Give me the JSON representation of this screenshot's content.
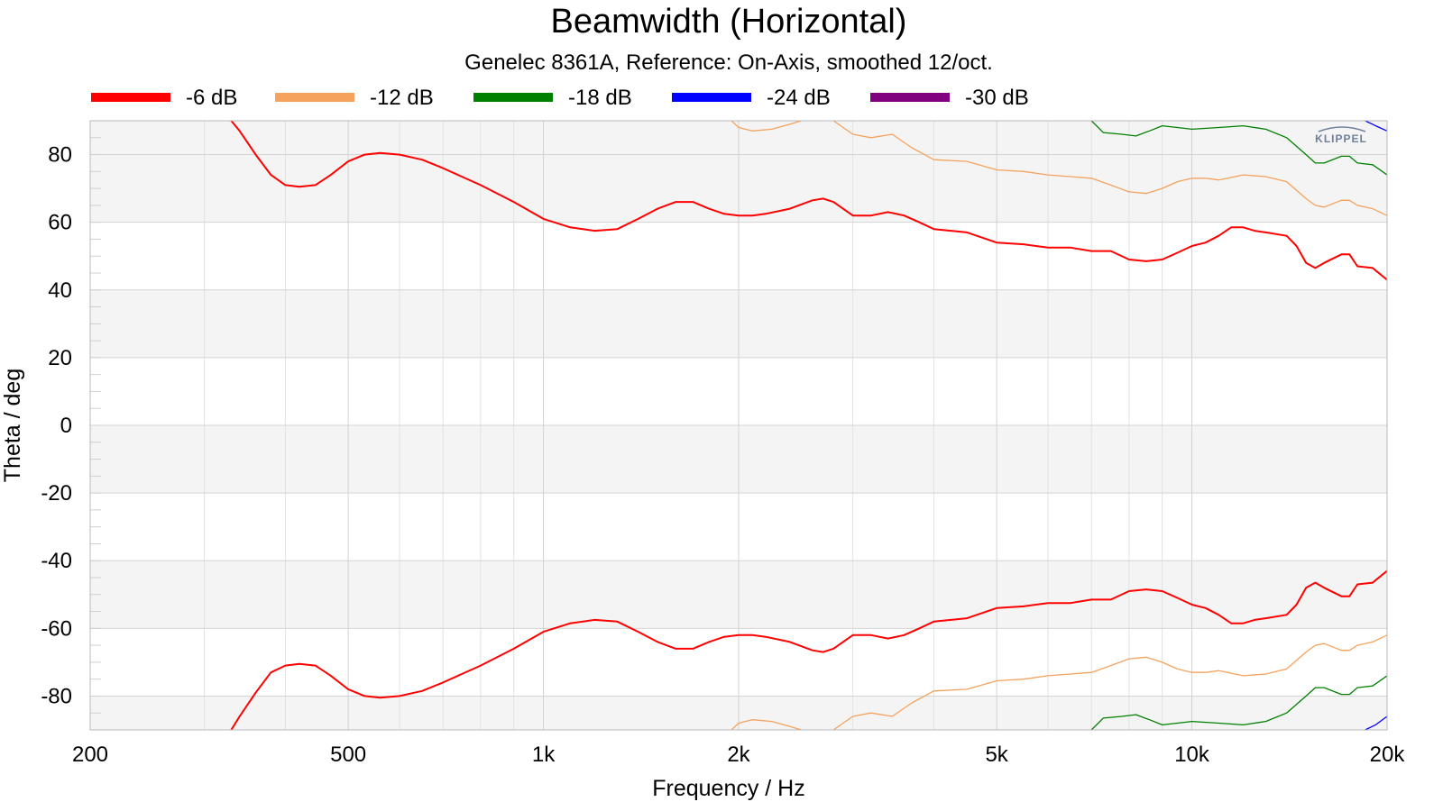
{
  "chart_data": {
    "type": "line",
    "title": "Beamwidth (Horizontal)",
    "subtitle": "Genelec 8361A, Reference: On-Axis, smoothed 12/oct.",
    "xlabel": "Frequency / Hz",
    "ylabel": "Theta / deg",
    "x_scale": "log",
    "xlim": [
      200,
      20000
    ],
    "ylim": [
      -90,
      90
    ],
    "x_ticks": [
      200,
      500,
      1000,
      2000,
      5000,
      10000,
      20000
    ],
    "x_tick_labels": [
      "200",
      "500",
      "1k",
      "2k",
      "5k",
      "10k",
      "20k"
    ],
    "y_ticks": [
      80,
      60,
      40,
      20,
      0,
      -20,
      -40,
      -60,
      -80
    ],
    "y_tick_labels": [
      "80",
      "60",
      "40",
      "20",
      "0",
      "-20",
      "-40",
      "-60",
      "-80"
    ],
    "grid": true,
    "legend_position": "top",
    "logo": "KLIPPEL",
    "series": [
      {
        "name": "-6 dB",
        "color": "#ff0000",
        "upper": [
          [
            330,
            90
          ],
          [
            340,
            87
          ],
          [
            360,
            80
          ],
          [
            380,
            74
          ],
          [
            400,
            71
          ],
          [
            420,
            70.5
          ],
          [
            445,
            71
          ],
          [
            470,
            74
          ],
          [
            500,
            78
          ],
          [
            530,
            80
          ],
          [
            560,
            80.5
          ],
          [
            600,
            80
          ],
          [
            650,
            78.5
          ],
          [
            700,
            76
          ],
          [
            800,
            71
          ],
          [
            900,
            66
          ],
          [
            1000,
            61
          ],
          [
            1100,
            58.5
          ],
          [
            1200,
            57.5
          ],
          [
            1300,
            58
          ],
          [
            1400,
            61
          ],
          [
            1500,
            64
          ],
          [
            1600,
            66
          ],
          [
            1700,
            66
          ],
          [
            1800,
            64
          ],
          [
            1900,
            62.5
          ],
          [
            2000,
            62
          ],
          [
            2100,
            62
          ],
          [
            2200,
            62.5
          ],
          [
            2400,
            64
          ],
          [
            2600,
            66.5
          ],
          [
            2700,
            67
          ],
          [
            2800,
            66
          ],
          [
            3000,
            62
          ],
          [
            3200,
            62
          ],
          [
            3400,
            63
          ],
          [
            3600,
            62
          ],
          [
            3800,
            60
          ],
          [
            4000,
            58
          ],
          [
            4500,
            57
          ],
          [
            5000,
            54
          ],
          [
            5500,
            53.5
          ],
          [
            6000,
            52.5
          ],
          [
            6500,
            52.5
          ],
          [
            7000,
            51.5
          ],
          [
            7500,
            51.5
          ],
          [
            8000,
            49
          ],
          [
            8500,
            48.5
          ],
          [
            9000,
            49
          ],
          [
            9500,
            51
          ],
          [
            10000,
            53
          ],
          [
            10500,
            54
          ],
          [
            11000,
            56
          ],
          [
            11500,
            58.5
          ],
          [
            12000,
            58.5
          ],
          [
            12500,
            57.5
          ],
          [
            13000,
            57
          ],
          [
            14000,
            56
          ],
          [
            14500,
            53
          ],
          [
            15000,
            48
          ],
          [
            15500,
            46.5
          ],
          [
            16000,
            48
          ],
          [
            17000,
            50.5
          ],
          [
            17500,
            50.5
          ],
          [
            18000,
            47
          ],
          [
            19000,
            46.5
          ],
          [
            20000,
            43
          ]
        ],
        "lower": [
          [
            330,
            -90
          ],
          [
            340,
            -86
          ],
          [
            360,
            -79
          ],
          [
            380,
            -73
          ],
          [
            400,
            -71
          ],
          [
            420,
            -70.5
          ],
          [
            445,
            -71
          ],
          [
            470,
            -74
          ],
          [
            500,
            -78
          ],
          [
            530,
            -80
          ],
          [
            560,
            -80.5
          ],
          [
            600,
            -80
          ],
          [
            650,
            -78.5
          ],
          [
            700,
            -76
          ],
          [
            800,
            -71
          ],
          [
            900,
            -66
          ],
          [
            1000,
            -61
          ],
          [
            1100,
            -58.5
          ],
          [
            1200,
            -57.5
          ],
          [
            1300,
            -58
          ],
          [
            1400,
            -61
          ],
          [
            1500,
            -64
          ],
          [
            1600,
            -66
          ],
          [
            1700,
            -66
          ],
          [
            1800,
            -64
          ],
          [
            1900,
            -62.5
          ],
          [
            2000,
            -62
          ],
          [
            2100,
            -62
          ],
          [
            2200,
            -62.5
          ],
          [
            2400,
            -64
          ],
          [
            2600,
            -66.5
          ],
          [
            2700,
            -67
          ],
          [
            2800,
            -66
          ],
          [
            3000,
            -62
          ],
          [
            3200,
            -62
          ],
          [
            3400,
            -63
          ],
          [
            3600,
            -62
          ],
          [
            3800,
            -60
          ],
          [
            4000,
            -58
          ],
          [
            4500,
            -57
          ],
          [
            5000,
            -54
          ],
          [
            5500,
            -53.5
          ],
          [
            6000,
            -52.5
          ],
          [
            6500,
            -52.5
          ],
          [
            7000,
            -51.5
          ],
          [
            7500,
            -51.5
          ],
          [
            8000,
            -49
          ],
          [
            8500,
            -48.5
          ],
          [
            9000,
            -49
          ],
          [
            9500,
            -51
          ],
          [
            10000,
            -53
          ],
          [
            10500,
            -54
          ],
          [
            11000,
            -56
          ],
          [
            11500,
            -58.5
          ],
          [
            12000,
            -58.5
          ],
          [
            12500,
            -57.5
          ],
          [
            13000,
            -57
          ],
          [
            14000,
            -56
          ],
          [
            14500,
            -53
          ],
          [
            15000,
            -48
          ],
          [
            15500,
            -46.5
          ],
          [
            16000,
            -48
          ],
          [
            17000,
            -50.5
          ],
          [
            17500,
            -50.5
          ],
          [
            18000,
            -47
          ],
          [
            19000,
            -46.5
          ],
          [
            20000,
            -43
          ]
        ]
      },
      {
        "name": "-12 dB",
        "color": "#f5a25d",
        "upper": [
          [
            1950,
            90
          ],
          [
            2000,
            88
          ],
          [
            2100,
            87
          ],
          [
            2250,
            87.5
          ],
          [
            2400,
            89
          ],
          [
            2500,
            90
          ]
        ],
        "upper2": [
          [
            2800,
            90
          ],
          [
            3000,
            86
          ],
          [
            3200,
            85
          ],
          [
            3450,
            86
          ],
          [
            3700,
            82
          ],
          [
            4000,
            78.5
          ],
          [
            4500,
            78
          ],
          [
            5000,
            75.5
          ],
          [
            5500,
            75
          ],
          [
            6000,
            74
          ],
          [
            6500,
            73.5
          ],
          [
            7000,
            73
          ],
          [
            7500,
            71
          ],
          [
            8000,
            69
          ],
          [
            8500,
            68.5
          ],
          [
            9000,
            70
          ],
          [
            9500,
            72
          ],
          [
            10000,
            73
          ],
          [
            10500,
            73
          ],
          [
            11000,
            72.5
          ],
          [
            12000,
            74
          ],
          [
            13000,
            73.5
          ],
          [
            14000,
            72
          ],
          [
            15000,
            67
          ],
          [
            15500,
            65
          ],
          [
            16000,
            64.5
          ],
          [
            17000,
            66.5
          ],
          [
            17500,
            66.5
          ],
          [
            18000,
            65
          ],
          [
            19000,
            64
          ],
          [
            20000,
            62
          ]
        ],
        "lower": [
          [
            1950,
            -90
          ],
          [
            2000,
            -88
          ],
          [
            2100,
            -87
          ],
          [
            2250,
            -87.5
          ],
          [
            2400,
            -89
          ],
          [
            2500,
            -90
          ]
        ],
        "lower2": [
          [
            2800,
            -90
          ],
          [
            3000,
            -86
          ],
          [
            3200,
            -85
          ],
          [
            3450,
            -86
          ],
          [
            3700,
            -82
          ],
          [
            4000,
            -78.5
          ],
          [
            4500,
            -78
          ],
          [
            5000,
            -75.5
          ],
          [
            5500,
            -75
          ],
          [
            6000,
            -74
          ],
          [
            6500,
            -73.5
          ],
          [
            7000,
            -73
          ],
          [
            7500,
            -71
          ],
          [
            8000,
            -69
          ],
          [
            8500,
            -68.5
          ],
          [
            9000,
            -70
          ],
          [
            9500,
            -72
          ],
          [
            10000,
            -73
          ],
          [
            10500,
            -73
          ],
          [
            11000,
            -72.5
          ],
          [
            12000,
            -74
          ],
          [
            13000,
            -73.5
          ],
          [
            14000,
            -72
          ],
          [
            15000,
            -67
          ],
          [
            15500,
            -65
          ],
          [
            16000,
            -64.5
          ],
          [
            17000,
            -66.5
          ],
          [
            17500,
            -66.5
          ],
          [
            18000,
            -65
          ],
          [
            19000,
            -64
          ],
          [
            20000,
            -62
          ]
        ]
      },
      {
        "name": "-18 dB",
        "color": "#008000",
        "upper": [
          [
            7000,
            90
          ],
          [
            7300,
            86.5
          ],
          [
            7800,
            86
          ],
          [
            8200,
            85.5
          ],
          [
            8600,
            87
          ],
          [
            9000,
            88.5
          ],
          [
            9500,
            88
          ],
          [
            10000,
            87.5
          ],
          [
            11000,
            88
          ],
          [
            12000,
            88.5
          ],
          [
            13000,
            87.5
          ],
          [
            14000,
            85
          ],
          [
            15000,
            80
          ],
          [
            15500,
            77.5
          ],
          [
            16000,
            77.5
          ],
          [
            17000,
            79.5
          ],
          [
            17500,
            79.5
          ],
          [
            18000,
            77.5
          ],
          [
            19000,
            77
          ],
          [
            20000,
            74
          ]
        ],
        "lower": [
          [
            7000,
            -90
          ],
          [
            7300,
            -86.5
          ],
          [
            7800,
            -86
          ],
          [
            8200,
            -85.5
          ],
          [
            8600,
            -87
          ],
          [
            9000,
            -88.5
          ],
          [
            9500,
            -88
          ],
          [
            10000,
            -87.5
          ],
          [
            11000,
            -88
          ],
          [
            12000,
            -88.5
          ],
          [
            13000,
            -87.5
          ],
          [
            14000,
            -85
          ],
          [
            15000,
            -80
          ],
          [
            15500,
            -77.5
          ],
          [
            16000,
            -77.5
          ],
          [
            17000,
            -79.5
          ],
          [
            17500,
            -79.5
          ],
          [
            18000,
            -77.5
          ],
          [
            19000,
            -77
          ],
          [
            20000,
            -74
          ]
        ]
      },
      {
        "name": "-24 dB",
        "color": "#0000ff",
        "upper": [
          [
            18500,
            90
          ],
          [
            19200,
            88.5
          ],
          [
            20000,
            87
          ]
        ],
        "lower": [
          [
            18500,
            -90
          ],
          [
            19200,
            -88.5
          ],
          [
            20000,
            -86
          ]
        ]
      },
      {
        "name": "-30 dB",
        "color": "#800080",
        "upper": [],
        "lower": []
      }
    ]
  }
}
